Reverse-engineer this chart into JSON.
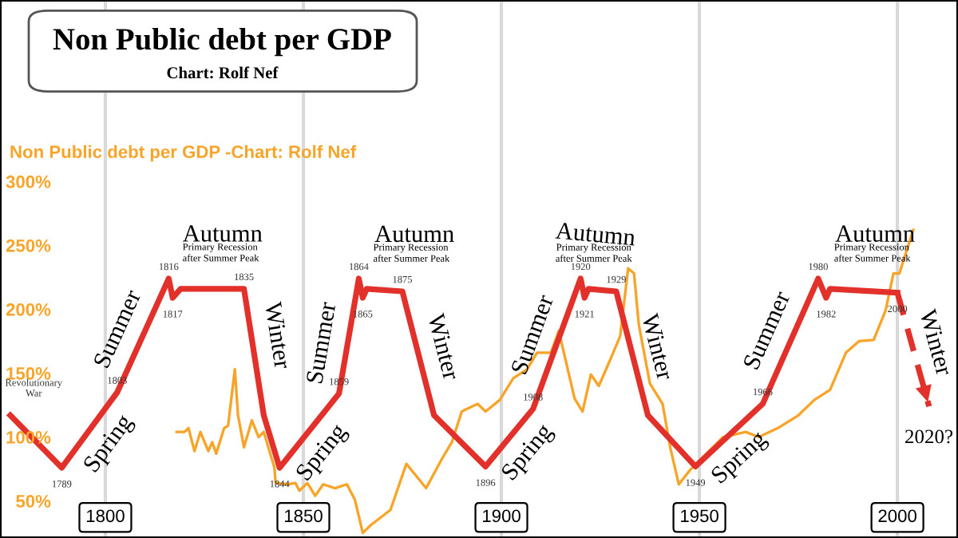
{
  "chart_data": {
    "type": "line",
    "title": "Non Public debt per GDP",
    "subtitle": "Chart: Rolf Nef",
    "ylabel": "Non Public debt per GDP -Chart: Rolf Nef",
    "xlim": [
      1773.4,
      2015.3
    ],
    "ylim": [
      21,
      442
    ],
    "xticks": [
      1800,
      1850,
      1900,
      1950,
      2000
    ],
    "yticks": [
      {
        "value": 50,
        "label": "50%"
      },
      {
        "value": 100,
        "label": "100%"
      },
      {
        "value": 150,
        "label": "150%"
      },
      {
        "value": 200,
        "label": "200%"
      },
      {
        "value": 250,
        "label": "250%"
      },
      {
        "value": 300,
        "label": "300%"
      }
    ],
    "grid": "x",
    "series": [
      {
        "color": "#f7a428",
        "x": [
          1818,
          1820,
          1821,
          1822.5,
          1824,
          1826,
          1827,
          1828,
          1830,
          1831,
          1832.7,
          1833.5,
          1835,
          1837,
          1838.7,
          1840,
          1842.7,
          1843,
          1846,
          1848,
          1849,
          1851,
          1853,
          1855,
          1858,
          1861,
          1863,
          1865,
          1867,
          1872,
          1876,
          1881,
          1885,
          1887.5,
          1890,
          1894,
          1896,
          1899.6,
          1903,
          1906.5,
          1909,
          1912.5,
          1914.5,
          1918.5,
          1920.5,
          1922.6,
          1924.6,
          1927,
          1930,
          1932,
          1933.5,
          1934.7,
          1937.5,
          1940.7,
          1942.7,
          1944.8,
          1947.6,
          1950.8,
          1956,
          1961.7,
          1965,
          1969.8,
          1975,
          1979,
          1983,
          1987,
          1990.3,
          1994,
          1997,
          1999,
          2000.5,
          2004
        ],
        "values": [
          104,
          104,
          107,
          89,
          104,
          89,
          96,
          87,
          107,
          109,
          153,
          117,
          92,
          113,
          100,
          104,
          76,
          64,
          63,
          64,
          58,
          64,
          54,
          63,
          60,
          63,
          51,
          25,
          31,
          43,
          79,
          60,
          83,
          96,
          120,
          126,
          120,
          129,
          146,
          153,
          166,
          166,
          183,
          130,
          120,
          149,
          140,
          157,
          179,
          232,
          228,
          188,
          142,
          126,
          91,
          63,
          74,
          84,
          100,
          104,
          100,
          107,
          117,
          129,
          137,
          166,
          175,
          176,
          199,
          228,
          228,
          262
        ]
      },
      {
        "color": "#e2302a",
        "line_style": "solid",
        "x": [
          1776,
          1789,
          1803,
          1816,
          1817,
          1819,
          1835,
          1840,
          1844,
          1859,
          1864,
          1865,
          1866,
          1875,
          1883,
          1896,
          1908,
          1920,
          1921,
          1922,
          1929,
          1937,
          1949,
          1966,
          1980,
          1982,
          1983,
          2000
        ],
        "values": [
          117,
          76,
          135,
          224,
          209,
          216,
          216,
          117,
          76,
          134,
          224,
          209,
          216,
          214,
          117,
          77,
          122,
          224,
          209,
          216,
          214,
          117,
          77,
          126,
          224,
          209,
          216,
          213
        ]
      },
      {
        "color": "#e2302a",
        "line_style": "dashed",
        "x": [
          2000,
          2008
        ],
        "values": [
          213,
          124
        ]
      }
    ],
    "annotations": [
      {
        "text": "Revolutionary\nWar",
        "x": 1776,
        "y": 117
      },
      {
        "text": "1789",
        "x": 1789,
        "y": 76
      },
      {
        "text": "1803",
        "x": 1803,
        "y": 135
      },
      {
        "text": "1816",
        "x": 1816,
        "y": 224
      },
      {
        "text": "1817",
        "x": 1817,
        "y": 209
      },
      {
        "text": "1835",
        "x": 1835,
        "y": 216
      },
      {
        "text": "1844",
        "x": 1844,
        "y": 76
      },
      {
        "text": "1859",
        "x": 1859,
        "y": 134
      },
      {
        "text": "1864",
        "x": 1864,
        "y": 224
      },
      {
        "text": "1865",
        "x": 1865,
        "y": 209
      },
      {
        "text": "1875",
        "x": 1875,
        "y": 214
      },
      {
        "text": "1896",
        "x": 1896,
        "y": 77
      },
      {
        "text": "1908",
        "x": 1908,
        "y": 122
      },
      {
        "text": "1920",
        "x": 1920,
        "y": 224
      },
      {
        "text": "1921",
        "x": 1921,
        "y": 209
      },
      {
        "text": "1929",
        "x": 1929,
        "y": 214
      },
      {
        "text": "1949",
        "x": 1949,
        "y": 77
      },
      {
        "text": "1966",
        "x": 1966,
        "y": 126
      },
      {
        "text": "1980",
        "x": 1980,
        "y": 224
      },
      {
        "text": "1982",
        "x": 1982,
        "y": 209
      },
      {
        "text": "2000",
        "x": 2000,
        "y": 213
      },
      {
        "text": "2020?",
        "x": 2008,
        "y": 124
      },
      {
        "text": "Spring",
        "x": 1796,
        "y": 105.5
      },
      {
        "text": "Summer",
        "x": 1809,
        "y": 176
      },
      {
        "text": "Autumn",
        "x": 1819.5,
        "y": 216
      },
      {
        "text": "Primary Recession\nafter Summer Peak",
        "x": 1819.5,
        "y": 216
      },
      {
        "text": "Winter",
        "x": 1837,
        "y": 176.4
      },
      {
        "text": "Spring",
        "x": 1850,
        "y": 99.2
      },
      {
        "text": "Summer",
        "x": 1861,
        "y": 170
      },
      {
        "text": "Autumn",
        "x": 1867,
        "y": 215.78
      },
      {
        "text": "Primary Recession\nafter Summer Peak",
        "x": 1867,
        "y": 215.78
      },
      {
        "text": "Winter",
        "x": 1879,
        "y": 165.5
      },
      {
        "text": "Spring",
        "x": 1902,
        "y": 99.5
      },
      {
        "text": "Summer",
        "x": 1914,
        "y": 173
      },
      {
        "text": "Autumn",
        "x": 1922.5,
        "y": 215.86
      },
      {
        "text": "Primary Recession\nafter Summer Peak",
        "x": 1922.5,
        "y": 215.86
      },
      {
        "text": "Winter",
        "x": 1933,
        "y": 165.5
      },
      {
        "text": "Spring",
        "x": 1956,
        "y": 97.2
      },
      {
        "text": "Summer",
        "x": 1973,
        "y": 175
      },
      {
        "text": "Autumn",
        "x": 1983.5,
        "y": 215.91
      },
      {
        "text": "Primary Recession\nafter Summer Peak",
        "x": 1983.5,
        "y": 215.91
      },
      {
        "text": "Winter",
        "x": 2004,
        "y": 168.5
      }
    ]
  }
}
